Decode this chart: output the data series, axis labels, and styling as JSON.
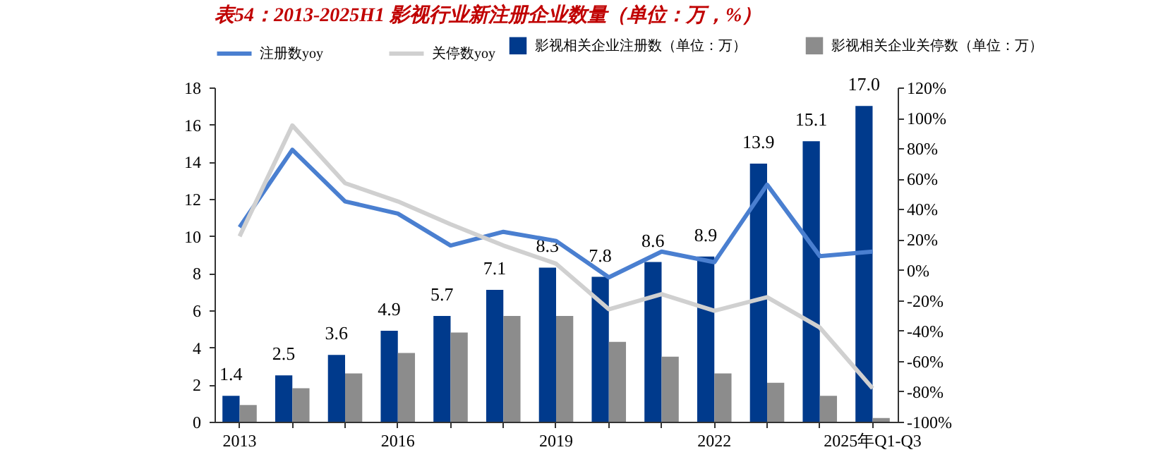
{
  "chart_data": {
    "type": "bar",
    "title": "表54：2013-2025H1 影视行业新注册企业数量（单位：万，%）",
    "categories": [
      "2013",
      null,
      null,
      "2016",
      null,
      null,
      "2019",
      null,
      null,
      "2022",
      null,
      null,
      "2025年Q1-Q3"
    ],
    "series": [
      {
        "name": "影视相关企业注册数（单位：万）",
        "color": "#003a8c",
        "values": [
          1.4,
          2.5,
          3.6,
          4.9,
          5.7,
          7.1,
          8.3,
          7.8,
          8.6,
          8.9,
          13.9,
          15.1,
          17.0
        ],
        "value_labels": [
          "1.4",
          "2.5",
          "3.6",
          "4.9",
          "5.7",
          "7.1",
          "8.3",
          "7.8",
          "8.6",
          "8.9",
          "13.9",
          "15.1",
          "17.0"
        ]
      },
      {
        "name": "影视相关企业关停数（单位：万）",
        "color": "#8c8c8c",
        "values": [
          0.9,
          1.8,
          2.6,
          3.7,
          4.8,
          5.7,
          5.7,
          4.3,
          3.5,
          2.6,
          2.1,
          1.4,
          0.2
        ]
      },
      {
        "name": "注册数yoy",
        "type": "line",
        "axis": "y2",
        "color": "#4a7fd0",
        "values": [
          28,
          79,
          45,
          37,
          16,
          25,
          19,
          -5,
          12,
          5,
          56,
          9,
          12
        ]
      },
      {
        "name": "关停数yoy",
        "type": "line",
        "axis": "y2",
        "color": "#d0d0d0",
        "values": [
          22,
          95,
          57,
          45,
          30,
          16,
          4,
          -26,
          -16,
          -27,
          -18,
          -38,
          -78
        ]
      }
    ],
    "ylim": [
      0,
      18
    ],
    "yticks": [
      0,
      2,
      4,
      6,
      8,
      10,
      12,
      14,
      16,
      18
    ],
    "y2lim": [
      -100,
      120
    ],
    "y2ticks": [
      {
        "value": -100,
        "label": "-100%"
      },
      {
        "value": -80,
        "label": "-80%"
      },
      {
        "value": -60,
        "label": "-60%"
      },
      {
        "value": -40,
        "label": "-40%"
      },
      {
        "value": -20,
        "label": "-20%"
      },
      {
        "value": 0,
        "label": "0%"
      },
      {
        "value": 20,
        "label": "20%"
      },
      {
        "value": 40,
        "label": "40%"
      },
      {
        "value": 60,
        "label": "60%"
      },
      {
        "value": 80,
        "label": "80%"
      },
      {
        "value": 100,
        "label": "100%"
      },
      {
        "value": 120,
        "label": "120%"
      }
    ],
    "grid": false,
    "legend": "top"
  }
}
